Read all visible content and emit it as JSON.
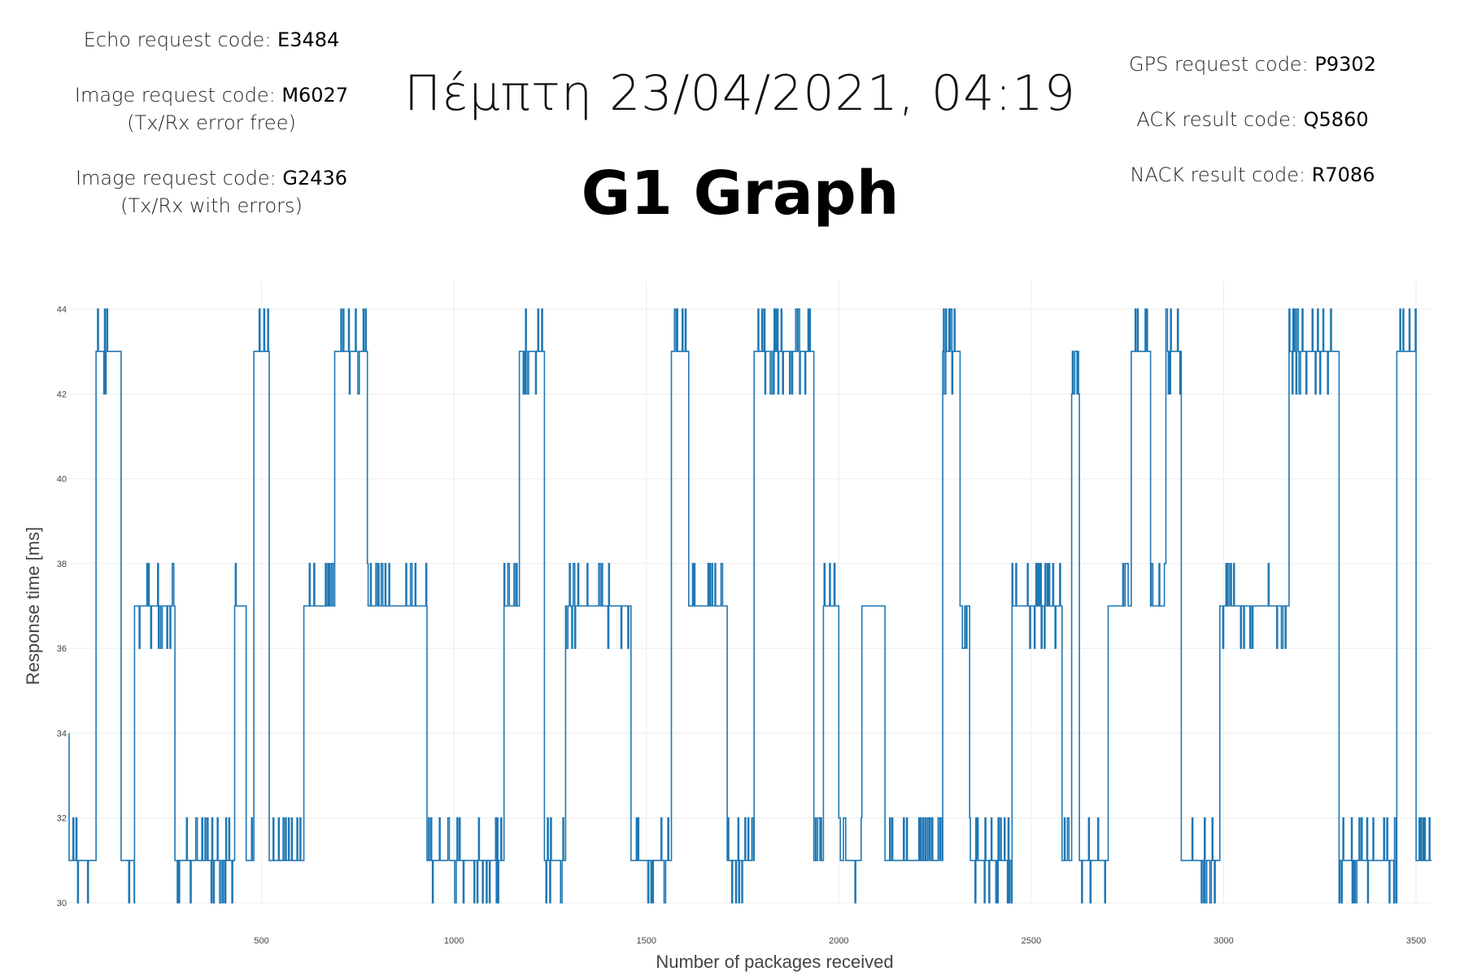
{
  "header": {
    "datetime": "Πέμπτη 23/04/2021, 04:19",
    "title": "G1 Graph"
  },
  "left_info": [
    {
      "label": "Echo request code: ",
      "code": "E3484",
      "note": ""
    },
    {
      "label": "Image request code: ",
      "code": "M6027",
      "note": "(Tx/Rx error free)"
    },
    {
      "label": "Image request code: ",
      "code": "G2436",
      "note": "(Tx/Rx with errors)"
    }
  ],
  "right_info": [
    {
      "label": "GPS request code: ",
      "code": "P9302"
    },
    {
      "label": "ACK result code: ",
      "code": "Q5860"
    },
    {
      "label": "NACK result code: ",
      "code": "R7086"
    }
  ],
  "chart_data": {
    "type": "line",
    "title": "G1 Graph",
    "xlabel": "Number of packages received",
    "ylabel": "Response time [ms]",
    "xlim": [
      0,
      3540
    ],
    "ylim": [
      30,
      44
    ],
    "xticks": [
      500,
      1000,
      1500,
      2000,
      2500,
      3000,
      3500
    ],
    "yticks": [
      30,
      32,
      34,
      36,
      38,
      40,
      42,
      44
    ],
    "grid": true,
    "line_color": "#1f77b4",
    "series": [
      {
        "name": "",
        "segments": [
          {
            "x0": 0,
            "x1": 70,
            "base": 31,
            "jitter": [
              30,
              31,
              32
            ]
          },
          {
            "x0": 70,
            "x1": 135,
            "base": 43,
            "jitter": [
              42,
              43,
              44
            ]
          },
          {
            "x0": 135,
            "x1": 170,
            "base": 31,
            "jitter": [
              30,
              31
            ]
          },
          {
            "x0": 170,
            "x1": 275,
            "base": 37,
            "jitter": [
              36,
              37,
              38
            ]
          },
          {
            "x0": 275,
            "x1": 430,
            "base": 31,
            "jitter": [
              30,
              31,
              32
            ]
          },
          {
            "x0": 430,
            "x1": 460,
            "base": 37,
            "jitter": [
              37,
              38
            ]
          },
          {
            "x0": 460,
            "x1": 480,
            "base": 31,
            "jitter": [
              31,
              32
            ]
          },
          {
            "x0": 480,
            "x1": 520,
            "base": 43,
            "jitter": [
              43,
              44
            ]
          },
          {
            "x0": 520,
            "x1": 610,
            "base": 31,
            "jitter": [
              31,
              32
            ]
          },
          {
            "x0": 610,
            "x1": 690,
            "base": 37,
            "jitter": [
              37,
              38
            ]
          },
          {
            "x0": 690,
            "x1": 775,
            "base": 43,
            "jitter": [
              42,
              43,
              44
            ]
          },
          {
            "x0": 775,
            "x1": 930,
            "base": 37,
            "jitter": [
              37,
              38
            ]
          },
          {
            "x0": 930,
            "x1": 1130,
            "base": 31,
            "jitter": [
              30,
              31,
              32
            ]
          },
          {
            "x0": 1130,
            "x1": 1170,
            "base": 37,
            "jitter": [
              37,
              38
            ]
          },
          {
            "x0": 1170,
            "x1": 1235,
            "base": 43,
            "jitter": [
              42,
              43,
              44
            ]
          },
          {
            "x0": 1235,
            "x1": 1290,
            "base": 31,
            "jitter": [
              30,
              31,
              32
            ]
          },
          {
            "x0": 1290,
            "x1": 1460,
            "base": 37,
            "jitter": [
              36,
              37,
              38
            ]
          },
          {
            "x0": 1460,
            "x1": 1565,
            "base": 31,
            "jitter": [
              30,
              31,
              32
            ]
          },
          {
            "x0": 1565,
            "x1": 1610,
            "base": 43,
            "jitter": [
              43,
              44
            ]
          },
          {
            "x0": 1610,
            "x1": 1710,
            "base": 37,
            "jitter": [
              37,
              38
            ]
          },
          {
            "x0": 1710,
            "x1": 1780,
            "base": 31,
            "jitter": [
              30,
              31,
              32
            ]
          },
          {
            "x0": 1780,
            "x1": 1935,
            "base": 43,
            "jitter": [
              42,
              43,
              44
            ]
          },
          {
            "x0": 1935,
            "x1": 1960,
            "base": 31,
            "jitter": [
              31,
              32
            ]
          },
          {
            "x0": 1960,
            "x1": 2000,
            "base": 37,
            "jitter": [
              37,
              38
            ]
          },
          {
            "x0": 2000,
            "x1": 2060,
            "base": 31,
            "jitter": [
              30,
              31,
              32
            ]
          },
          {
            "x0": 2060,
            "x1": 2120,
            "base": 37,
            "jitter": [
              37
            ]
          },
          {
            "x0": 2120,
            "x1": 2270,
            "base": 31,
            "jitter": [
              31,
              32
            ]
          },
          {
            "x0": 2270,
            "x1": 2315,
            "base": 43,
            "jitter": [
              42,
              43,
              44
            ]
          },
          {
            "x0": 2315,
            "x1": 2340,
            "base": 37,
            "jitter": [
              36,
              37,
              38
            ]
          },
          {
            "x0": 2340,
            "x1": 2450,
            "base": 31,
            "jitter": [
              30,
              31,
              32
            ]
          },
          {
            "x0": 2450,
            "x1": 2580,
            "base": 37,
            "jitter": [
              36,
              37,
              38
            ]
          },
          {
            "x0": 2580,
            "x1": 2605,
            "base": 31,
            "jitter": [
              31,
              32
            ]
          },
          {
            "x0": 2605,
            "x1": 2625,
            "base": 43,
            "jitter": [
              42,
              43
            ]
          },
          {
            "x0": 2625,
            "x1": 2700,
            "base": 31,
            "jitter": [
              30,
              31,
              32
            ]
          },
          {
            "x0": 2700,
            "x1": 2760,
            "base": 37,
            "jitter": [
              37,
              38
            ]
          },
          {
            "x0": 2760,
            "x1": 2810,
            "base": 43,
            "jitter": [
              43,
              44
            ]
          },
          {
            "x0": 2810,
            "x1": 2850,
            "base": 37,
            "jitter": [
              37,
              38
            ]
          },
          {
            "x0": 2850,
            "x1": 2890,
            "base": 43,
            "jitter": [
              42,
              43,
              44
            ]
          },
          {
            "x0": 2890,
            "x1": 2990,
            "base": 31,
            "jitter": [
              30,
              31,
              32
            ]
          },
          {
            "x0": 2990,
            "x1": 3060,
            "base": 37,
            "jitter": [
              36,
              37,
              38
            ]
          },
          {
            "x0": 3060,
            "x1": 3170,
            "base": 37,
            "jitter": [
              36,
              37,
              38
            ]
          },
          {
            "x0": 3170,
            "x1": 3300,
            "base": 43,
            "jitter": [
              42,
              43,
              44
            ]
          },
          {
            "x0": 3300,
            "x1": 3450,
            "base": 31,
            "jitter": [
              30,
              31,
              32
            ]
          },
          {
            "x0": 3450,
            "x1": 3500,
            "base": 43,
            "jitter": [
              43,
              44
            ]
          },
          {
            "x0": 3500,
            "x1": 3540,
            "base": 31,
            "jitter": [
              31,
              32
            ]
          }
        ]
      }
    ]
  }
}
